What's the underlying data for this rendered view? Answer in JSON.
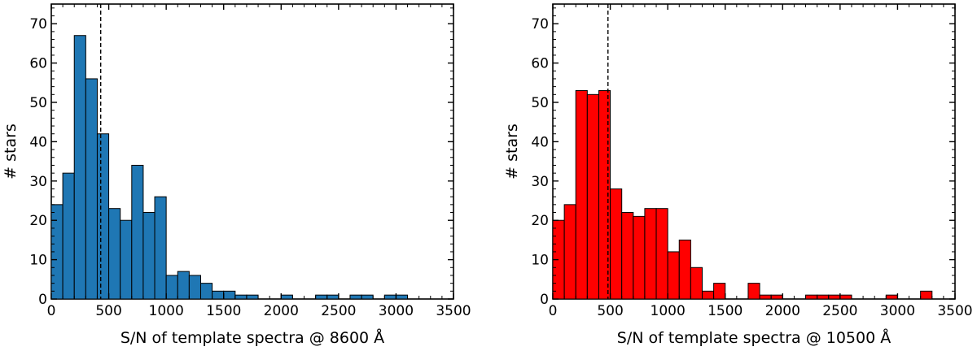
{
  "chart_data": [
    {
      "type": "bar",
      "subtype": "histogram",
      "xlabel": "S/N of template spectra @ 8600 Å",
      "ylabel": "# stars",
      "xlim": [
        0,
        3500
      ],
      "ylim": [
        0,
        75
      ],
      "bin_width": 100,
      "bin_start": 0,
      "values": [
        24,
        32,
        67,
        56,
        42,
        23,
        20,
        34,
        22,
        26,
        6,
        7,
        6,
        4,
        2,
        2,
        1,
        1,
        0,
        0,
        1,
        0,
        0,
        1,
        1,
        0,
        1,
        1,
        0,
        1,
        1,
        0,
        0,
        0,
        0
      ],
      "fill": "#1f77b4",
      "median_line": 430,
      "xticks": [
        0,
        500,
        1000,
        1500,
        2000,
        2500,
        3000,
        3500
      ],
      "yticks": [
        0,
        10,
        20,
        30,
        40,
        50,
        60,
        70
      ]
    },
    {
      "type": "bar",
      "subtype": "histogram",
      "xlabel": "S/N of template spectra @ 10500 Å",
      "ylabel": "# stars",
      "xlim": [
        0,
        3500
      ],
      "ylim": [
        0,
        75
      ],
      "bin_width": 100,
      "bin_start": 0,
      "values": [
        20,
        24,
        53,
        52,
        53,
        28,
        22,
        21,
        23,
        23,
        12,
        15,
        8,
        2,
        4,
        0,
        0,
        4,
        1,
        1,
        0,
        0,
        1,
        1,
        1,
        1,
        0,
        0,
        0,
        1,
        0,
        0,
        2,
        0,
        0
      ],
      "fill": "#ff0000",
      "median_line": 480,
      "xticks": [
        0,
        500,
        1000,
        1500,
        2000,
        2500,
        3000,
        3500
      ],
      "yticks": [
        0,
        10,
        20,
        30,
        40,
        50,
        60,
        70
      ]
    }
  ]
}
